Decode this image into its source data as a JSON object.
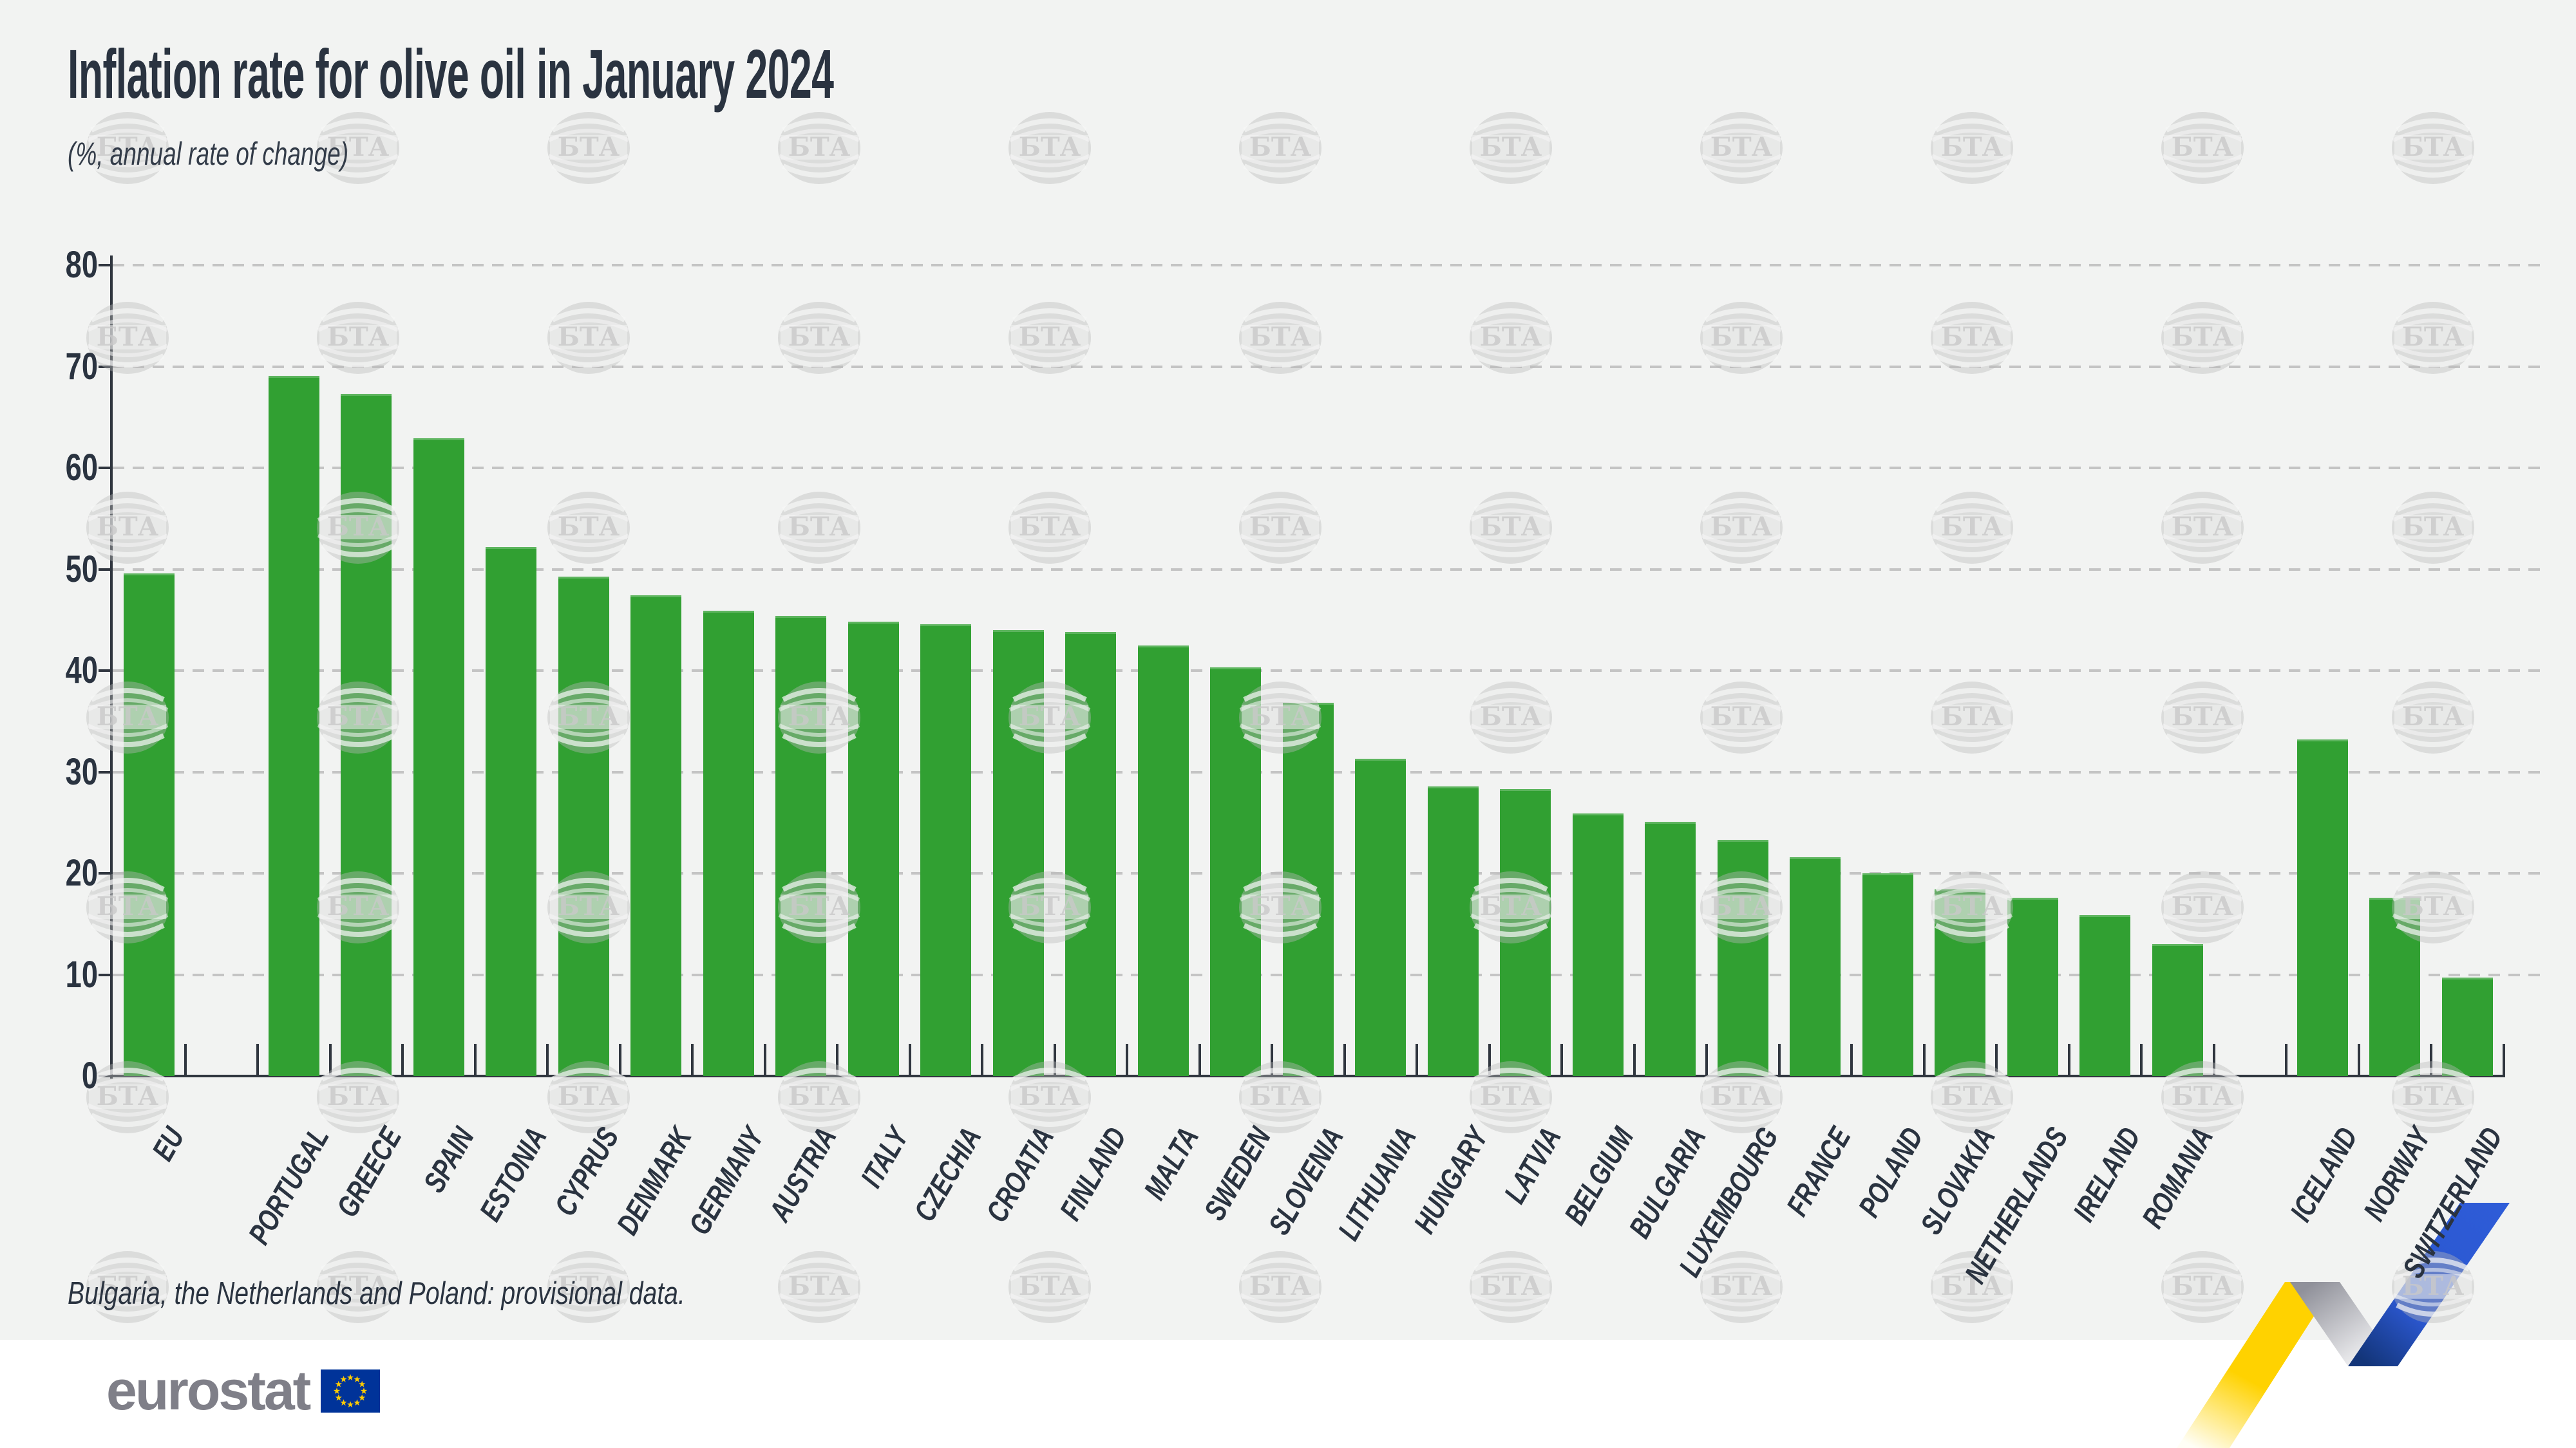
{
  "title": "Inflation rate for olive oil in January 2024",
  "subtitle": "(%, annual rate of change)",
  "footnote": "Bulgaria, the Netherlands and Poland: provisional data.",
  "branding": {
    "logo_text": "eurostat",
    "flag_description": "EU flag with 12 yellow stars"
  },
  "watermark": {
    "text": "БТА"
  },
  "colors": {
    "background": "#f2f3f2",
    "footer_background": "#ffffff",
    "text_dark": "#2a3340",
    "bar_green": "#31a032",
    "grid_line": "#c4c4c4",
    "axis_line": "#30363f",
    "logo_gray": "#7f7f88",
    "flag_blue": "#003399",
    "star_yellow": "#ffcc00",
    "ribbon_yellow": "#ffd200",
    "ribbon_yellow_fade": "#fffef6",
    "ribbon_gray": "#90919a",
    "ribbon_gray_fade": "#fbfbfc",
    "ribbon_blue": "#2b57cf",
    "ribbon_blue_light": "#2e5cd8",
    "ribbon_blue_dark": "#133579"
  },
  "chart_data": {
    "type": "bar",
    "title": "Inflation rate for olive oil in January 2024",
    "subtitle": "(%, annual rate of change)",
    "unit": "%",
    "xlabel": "",
    "ylabel": "",
    "ylim": [
      0,
      80
    ],
    "ytick_interval": 10,
    "grid": "horizontal-dashed",
    "legend": "none",
    "bar_color": "#31a032",
    "groups": [
      {
        "name": "eu-aggregate",
        "categories": [
          "EU"
        ],
        "values": [
          49.6
        ]
      },
      {
        "name": "eu-members",
        "categories": [
          "PORTUGAL",
          "GREECE",
          "SPAIN",
          "ESTONIA",
          "CYPRUS",
          "DENMARK",
          "GERMANY",
          "AUSTRIA",
          "ITALY",
          "CZECHIA",
          "CROATIA",
          "FINLAND",
          "MALTA",
          "SWEDEN",
          "SLOVENIA",
          "LITHUANIA",
          "HUNGARY",
          "LATVIA",
          "BELGIUM",
          "BULGARIA",
          "LUXEMBOURG",
          "FRANCE",
          "POLAND",
          "SLOVAKIA",
          "NETHERLANDS",
          "IRELAND",
          "ROMANIA"
        ],
        "values": [
          69.1,
          67.3,
          62.9,
          52.2,
          49.3,
          47.4,
          45.9,
          45.4,
          44.8,
          44.6,
          44.0,
          43.8,
          42.5,
          40.3,
          36.8,
          31.3,
          28.6,
          28.3,
          25.9,
          25.1,
          23.3,
          21.6,
          20.0,
          18.4,
          17.6,
          15.9,
          13.0
        ]
      },
      {
        "name": "efta",
        "categories": [
          "ICELAND",
          "NORWAY",
          "SWITZERLAND"
        ],
        "values": [
          33.2,
          17.6,
          9.7
        ]
      }
    ]
  }
}
